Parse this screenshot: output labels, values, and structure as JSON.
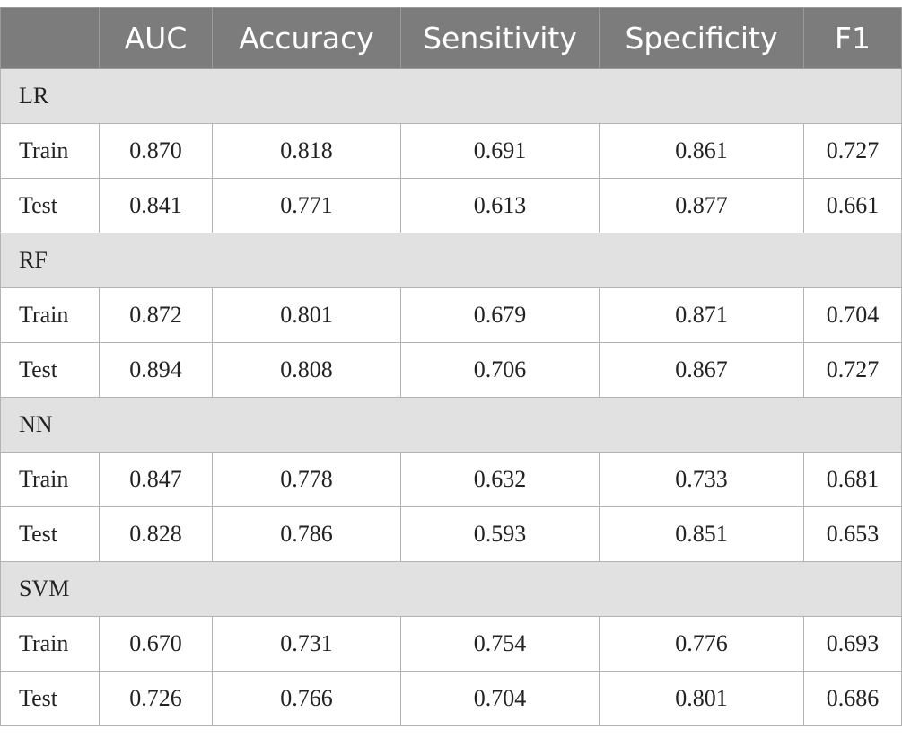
{
  "table": {
    "columns": [
      "AUC",
      "Accuracy",
      "Sensitivity",
      "Specificity",
      "F1"
    ],
    "groups": [
      {
        "name": "LR",
        "rows": [
          {
            "label": "Train",
            "values": [
              "0.870",
              "0.818",
              "0.691",
              "0.861",
              "0.727"
            ]
          },
          {
            "label": "Test",
            "values": [
              "0.841",
              "0.771",
              "0.613",
              "0.877",
              "0.661"
            ]
          }
        ]
      },
      {
        "name": "RF",
        "rows": [
          {
            "label": "Train",
            "values": [
              "0.872",
              "0.801",
              "0.679",
              "0.871",
              "0.704"
            ]
          },
          {
            "label": "Test",
            "values": [
              "0.894",
              "0.808",
              "0.706",
              "0.867",
              "0.727"
            ]
          }
        ]
      },
      {
        "name": "NN",
        "rows": [
          {
            "label": "Train",
            "values": [
              "0.847",
              "0.778",
              "0.632",
              "0.733",
              "0.681"
            ]
          },
          {
            "label": "Test",
            "values": [
              "0.828",
              "0.786",
              "0.593",
              "0.851",
              "0.653"
            ]
          }
        ]
      },
      {
        "name": "SVM",
        "rows": [
          {
            "label": "Train",
            "values": [
              "0.670",
              "0.731",
              "0.754",
              "0.776",
              "0.693"
            ]
          },
          {
            "label": "Test",
            "values": [
              "0.726",
              "0.766",
              "0.704",
              "0.801",
              "0.686"
            ]
          }
        ]
      }
    ]
  },
  "colors": {
    "header_bg": "#7c7c7c",
    "header_text": "#ffffff",
    "group_bg": "#e2e1e1",
    "border": "#b3b3b3",
    "body_text": "#222222"
  }
}
